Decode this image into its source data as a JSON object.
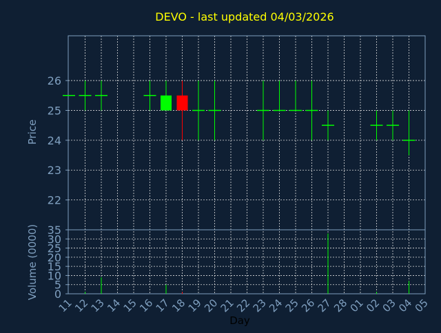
{
  "chart_data": {
    "type": "candlestick",
    "title": "DEVO - last updated 04/03/2026",
    "xlabel": "Day",
    "categories": [
      "11",
      "12",
      "13",
      "14",
      "15",
      "16",
      "17",
      "18",
      "19",
      "20",
      "21",
      "22",
      "23",
      "24",
      "25",
      "26",
      "27",
      "28",
      "01",
      "02",
      "03",
      "04",
      "05"
    ],
    "price": {
      "ylabel": "Price",
      "ylim": [
        21,
        27.5
      ],
      "yticks": [
        22,
        23,
        24,
        25,
        26
      ],
      "candles": [
        {
          "day": "11",
          "open": 25.5,
          "high": 25.5,
          "low": 25.5,
          "close": 25.5
        },
        {
          "day": "12",
          "open": 25.5,
          "high": 26.0,
          "low": 25.0,
          "close": 25.5
        },
        {
          "day": "13",
          "open": 25.5,
          "high": 26.0,
          "low": 25.0,
          "close": 25.5
        },
        {
          "day": "16",
          "open": 25.5,
          "high": 26.0,
          "low": 25.0,
          "close": 25.5
        },
        {
          "day": "17",
          "open": 25.0,
          "high": 26.0,
          "low": 25.0,
          "close": 25.5
        },
        {
          "day": "18",
          "open": 25.5,
          "high": 26.0,
          "low": 24.0,
          "close": 25.0
        },
        {
          "day": "19",
          "open": 25.0,
          "high": 26.0,
          "low": 24.0,
          "close": 25.0
        },
        {
          "day": "20",
          "open": 25.0,
          "high": 26.0,
          "low": 24.0,
          "close": 25.0
        },
        {
          "day": "23",
          "open": 25.0,
          "high": 26.0,
          "low": 24.0,
          "close": 25.0
        },
        {
          "day": "24",
          "open": 25.0,
          "high": 26.0,
          "low": 25.0,
          "close": 25.0
        },
        {
          "day": "25",
          "open": 25.0,
          "high": 26.0,
          "low": 25.0,
          "close": 25.0
        },
        {
          "day": "26",
          "open": 25.0,
          "high": 26.0,
          "low": 24.0,
          "close": 25.0
        },
        {
          "day": "27",
          "open": 24.5,
          "high": 25.0,
          "low": 24.0,
          "close": 24.5
        },
        {
          "day": "02",
          "open": 24.5,
          "high": 25.0,
          "low": 24.0,
          "close": 24.5
        },
        {
          "day": "03",
          "open": 24.5,
          "high": 25.0,
          "low": 24.0,
          "close": 24.5
        },
        {
          "day": "04",
          "open": 24.0,
          "high": 25.0,
          "low": 23.5,
          "close": 24.0
        }
      ]
    },
    "volume": {
      "ylabel": "Volume (0000)",
      "ylim": [
        0,
        35
      ],
      "yticks": [
        0,
        5,
        10,
        15,
        20,
        25,
        30,
        35
      ],
      "bars": [
        {
          "day": "12",
          "value": 1
        },
        {
          "day": "13",
          "value": 9
        },
        {
          "day": "17",
          "value": 5
        },
        {
          "day": "18",
          "value": 1
        },
        {
          "day": "27",
          "value": 33
        },
        {
          "day": "02",
          "value": 1
        },
        {
          "day": "04",
          "value": 7
        }
      ]
    },
    "grid": true,
    "colors": {
      "background": "#0f1f33",
      "title": "#ffff00",
      "axis_text": "#7f9fbf",
      "frame": "#7f9fbf",
      "grid": "#dfdfdf",
      "up": "#00ff00",
      "down": "#ff0000"
    }
  }
}
